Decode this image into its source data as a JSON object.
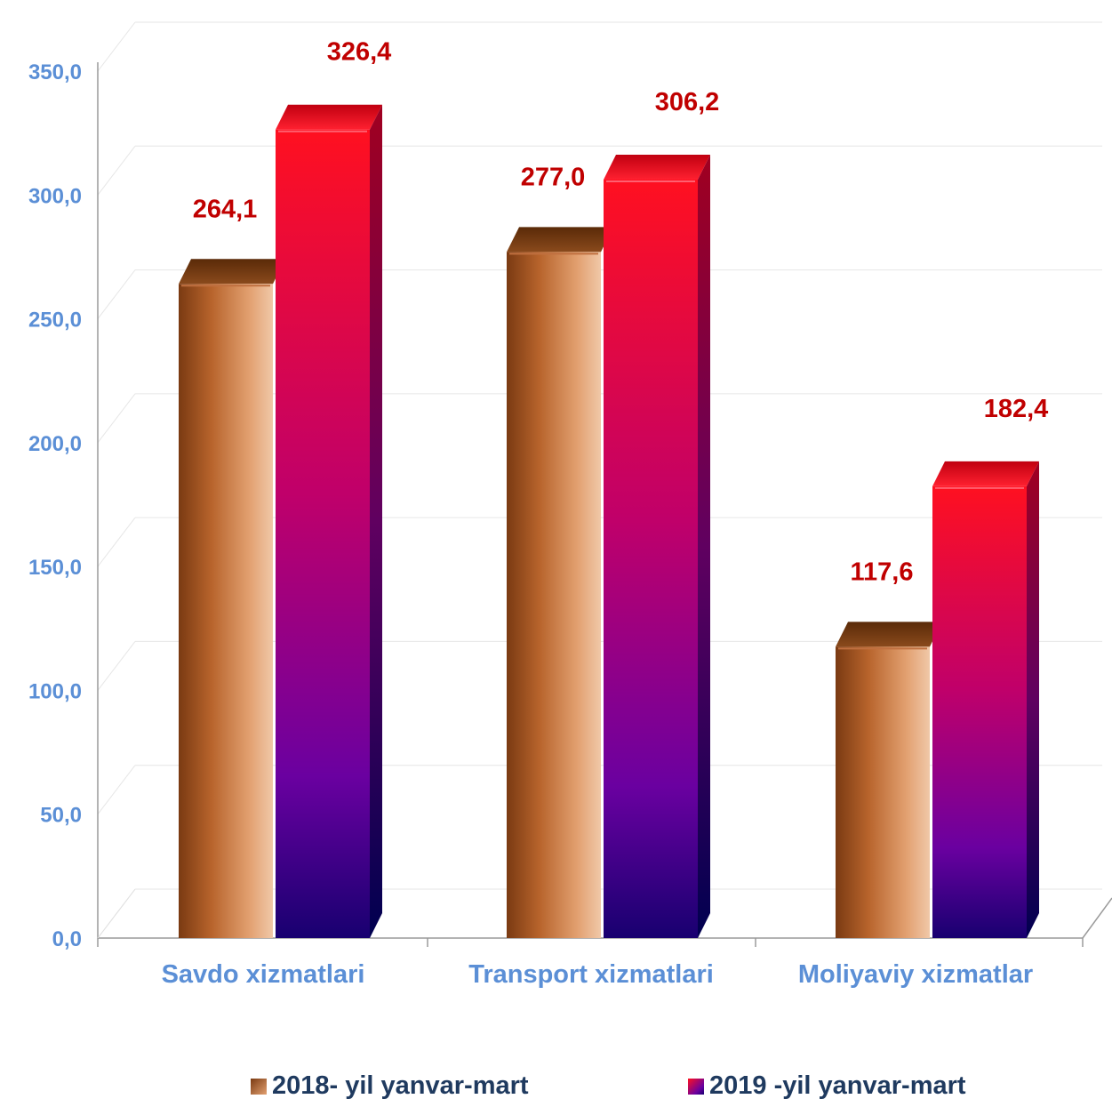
{
  "chart_data": {
    "type": "bar",
    "categories": [
      "Savdo xizmatlari",
      "Transport xizmatlari",
      "Moliyaviy xizmatlar"
    ],
    "series": [
      {
        "name": "2018- yil yanvar-mart",
        "values": [
          264.1,
          277.0,
          117.6
        ],
        "labels": [
          "264,1",
          "277,0",
          "117,6"
        ]
      },
      {
        "name": "2019 -yil yanvar-mart",
        "values": [
          326.4,
          306.2,
          182.4
        ],
        "labels": [
          "326,4",
          "306,2",
          "182,4"
        ]
      }
    ],
    "yticks": [
      "0,0",
      "50,0",
      "100,0",
      "150,0",
      "200,0",
      "250,0",
      "300,0",
      "350,0"
    ],
    "ylim": [
      0,
      350
    ],
    "grid": true,
    "legend_position": "bottom",
    "colors": {
      "series1_dark": "#7a3a12",
      "series1_light": "#e8b080",
      "series2_top": "#ff1020",
      "series2_bottom": "#1a0090",
      "label": "#c00000",
      "axis_text": "#5b8fd6"
    }
  }
}
